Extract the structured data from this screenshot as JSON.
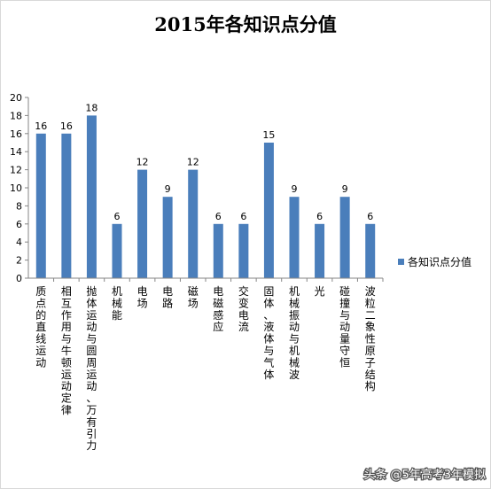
{
  "watermark": "头条 @5年高考3年模拟",
  "chart_data": {
    "type": "bar",
    "title": "2015年各知识点分值",
    "categories": [
      "质点的直线运动",
      "相互作用与牛顿运动定律",
      "抛体运动与圆周运动、万有引力",
      "机械能",
      "电场",
      "电路",
      "磁场",
      "电磁感应",
      "交变电流",
      "固体、液体与气体",
      "机械振动与机械波",
      "光",
      "碰撞与动量守恒",
      "波粒二象性原子结构"
    ],
    "series": [
      {
        "name": "各知识点分值",
        "color": "#4a7ebb",
        "values": [
          16,
          16,
          18,
          6,
          12,
          9,
          12,
          6,
          6,
          15,
          9,
          6,
          9,
          6
        ]
      }
    ],
    "ylim": [
      0,
      20
    ],
    "yticks": [
      0,
      2,
      4,
      6,
      8,
      10,
      12,
      14,
      16,
      18,
      20
    ],
    "xlabel": "",
    "ylabel": "",
    "grid": false,
    "legend": "right"
  }
}
